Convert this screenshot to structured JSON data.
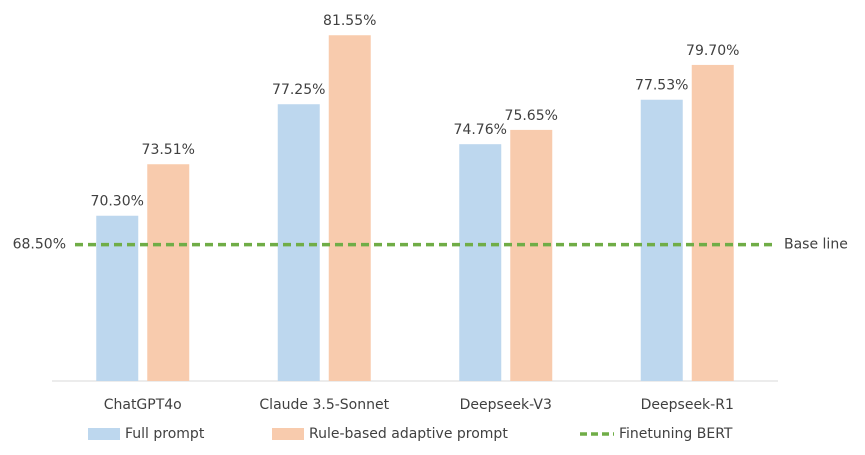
{
  "chart_data": {
    "type": "bar",
    "categories": [
      "ChatGPT4o",
      "Claude 3.5-Sonnet",
      "Deepseek-V3",
      "Deepseek-R1"
    ],
    "series": [
      {
        "name": "Full prompt",
        "color": "#bdd7ee",
        "values": [
          70.3,
          77.25,
          74.76,
          77.53
        ],
        "value_labels": [
          "70.30%",
          "77.25%",
          "74.76%",
          "77.53%"
        ]
      },
      {
        "name": "Rule-based adaptive prompt",
        "color": "#f8cbad",
        "values": [
          73.51,
          81.55,
          75.65,
          79.7
        ],
        "value_labels": [
          "73.51%",
          "81.55%",
          "75.65%",
          "79.70%"
        ]
      }
    ],
    "reference_line": {
      "name": "Finetuning BERT",
      "value": 68.5,
      "value_label": "68.50%",
      "annotation": "Base line",
      "color": "#70ad47"
    },
    "ylim": [
      60,
      82.5
    ]
  }
}
